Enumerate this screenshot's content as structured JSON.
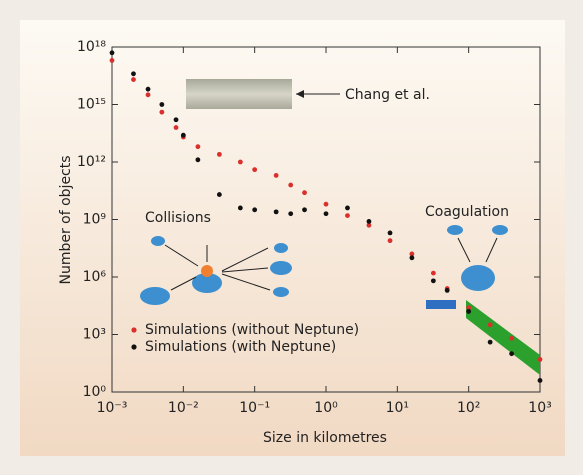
{
  "chart_data": {
    "type": "scatter",
    "xlabel": "Size in kilometres",
    "ylabel": "Number of objects",
    "annotations": [
      "Chang et al.",
      "Collisions",
      "Coagulation"
    ],
    "log_x": true,
    "log_y": true,
    "xlim": [
      0.001,
      1000
    ],
    "ylim": [
      1,
      1e+18
    ],
    "xticks": [
      {
        "value": 0.001,
        "label": "10⁻³"
      },
      {
        "value": 0.01,
        "label": "10⁻²"
      },
      {
        "value": 0.1,
        "label": "10⁻¹"
      },
      {
        "value": 1,
        "label": "10⁰"
      },
      {
        "value": 10,
        "label": "10¹"
      },
      {
        "value": 100,
        "label": "10²"
      },
      {
        "value": 1000,
        "label": "10³"
      }
    ],
    "yticks": [
      {
        "value": 1,
        "label": "10⁰"
      },
      {
        "value": 1000,
        "label": "10³"
      },
      {
        "value": 1000000,
        "label": "10⁶"
      },
      {
        "value": 1000000000,
        "label": "10⁹"
      },
      {
        "value": 1000000000000.0,
        "label": "10¹²"
      },
      {
        "value": 1000000000000000.0,
        "label": "10¹⁵"
      },
      {
        "value": 1e+18,
        "label": "10¹⁸"
      }
    ],
    "x": [
      0.001,
      0.002,
      0.0032,
      0.005,
      0.0079,
      0.01,
      0.016,
      0.032,
      0.063,
      0.1,
      0.2,
      0.32,
      0.5,
      1,
      2,
      4,
      7.9,
      16,
      32,
      50,
      100,
      200,
      400,
      1000
    ],
    "series": [
      {
        "name": "Simulations (without Neptune)",
        "color": "#d9302c",
        "values": [
          2e+17,
          2e+16,
          3200000000000000.0,
          400000000000000.0,
          63000000000000.0,
          20000000000000.0,
          6300000000000.0,
          2500000000000.0,
          1000000000000.0,
          400000000000.0,
          200000000000.0,
          63000000000.0,
          25000000000.0,
          6300000000.0,
          1600000000.0,
          500000000.0,
          79000000.0,
          16000000.0,
          1600000.0,
          250000.0,
          25000.0,
          3200,
          630,
          50
        ]
      },
      {
        "name": "Simulations (with Neptune)",
        "color": "#111111",
        "values": [
          5e+17,
          4e+16,
          6300000000000000.0,
          1000000000000000.0,
          160000000000000.0,
          25000000000000.0,
          1300000000000.0,
          20000000000.0,
          4000000000.0,
          3200000000.0,
          2500000000.0,
          2000000000.0,
          3200000000.0,
          2000000000.0,
          4000000000.0,
          790000000.0,
          200000000.0,
          10000000.0,
          630000.0,
          200000.0,
          16000.0,
          400,
          100,
          4
        ]
      }
    ]
  }
}
